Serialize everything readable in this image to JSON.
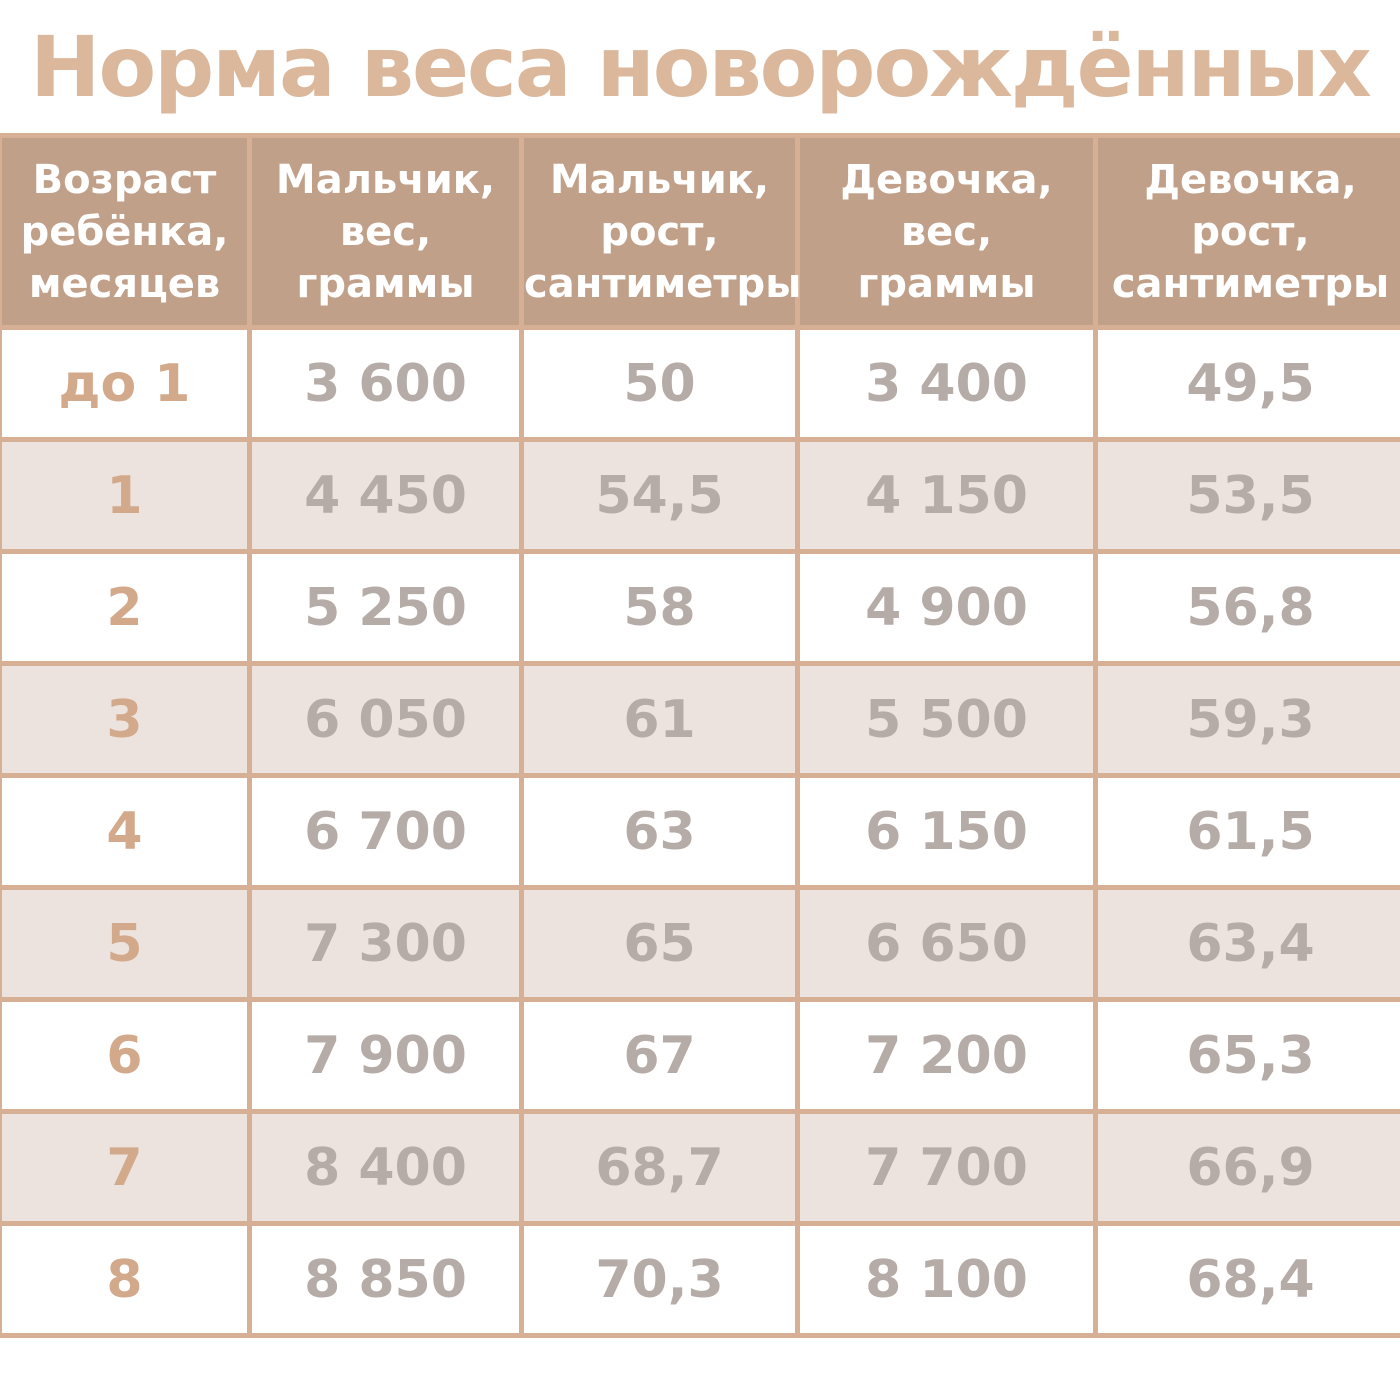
{
  "header": {
    "title": "Норма веса новорождённых"
  },
  "table": {
    "headers": [
      [
        "Возраст",
        "ребёнка,",
        "месяцев"
      ],
      [
        "Мальчик,",
        "вес,",
        "граммы"
      ],
      [
        "Мальчик,",
        "рост,",
        "сантиметры"
      ],
      [
        "Девочка,",
        "вес,",
        "граммы"
      ],
      [
        "Девочка,",
        "рост,",
        "сантиметры"
      ]
    ],
    "rows": [
      [
        "до 1",
        "3 600",
        "50",
        "3 400",
        "49,5"
      ],
      [
        "1",
        "4 450",
        "54,5",
        "4 150",
        "53,5"
      ],
      [
        "2",
        "5 250",
        "58",
        "4 900",
        "56,8"
      ],
      [
        "3",
        "6 050",
        "61",
        "5 500",
        "59,3"
      ],
      [
        "4",
        "6 700",
        "63",
        "6 150",
        "61,5"
      ],
      [
        "5",
        "7 300",
        "65",
        "6 650",
        "63,4"
      ],
      [
        "6",
        "7 900",
        "67",
        "7 200",
        "65,3"
      ],
      [
        "7",
        "8 400",
        "68,7",
        "7 700",
        "66,9"
      ],
      [
        "8",
        "8 850",
        "70,3",
        "8 100",
        "68,4"
      ]
    ]
  }
}
